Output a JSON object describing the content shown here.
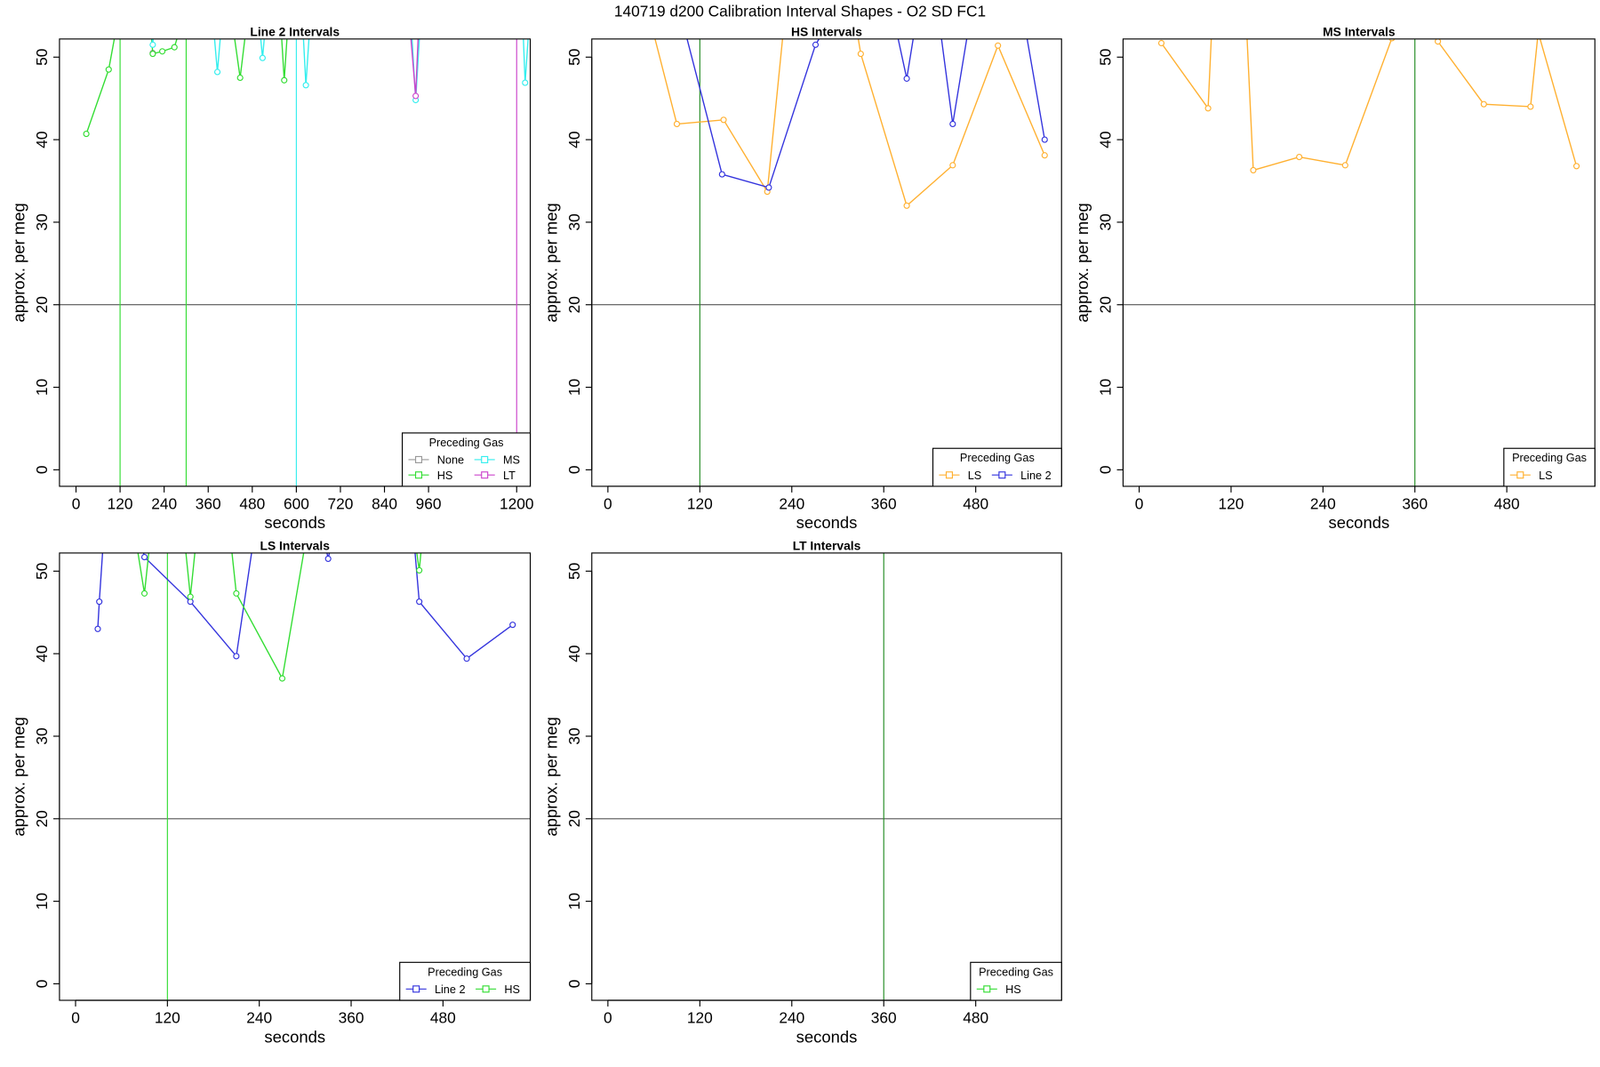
{
  "title": "140719   d200   Calibration Interval Shapes - O2 SD FC1",
  "chart_data": [
    {
      "type": "line",
      "title": "Line 2 Intervals",
      "xlabel": "seconds",
      "ylabel": "approx. per meg",
      "xlim": [
        -45,
        1237
      ],
      "ylim": [
        -2,
        52.2
      ],
      "xticks": [
        0,
        120,
        240,
        360,
        480,
        600,
        720,
        840,
        960,
        1200
      ],
      "yticks": [
        0,
        10,
        20,
        30,
        40,
        50
      ],
      "hline": 20,
      "hline_color": "#555555",
      "vlines": [
        120,
        300,
        600,
        1200
      ],
      "vline_colors": [
        "#33dd33",
        "#33dd33",
        "#33eeee",
        "#cc44cc"
      ],
      "legend_title": "Preceding Gas",
      "legend": "bottomright",
      "legend_ncol": 2,
      "series": [
        {
          "name": "None",
          "color": "#999999",
          "x": [
            209
          ],
          "values": [
            50.5
          ]
        },
        {
          "name": "HS",
          "color": "#33dd33",
          "x": [
            28,
            89,
            120,
            200,
            209,
            235,
            268,
            300,
            420,
            447,
            470,
            555,
            567,
            580
          ],
          "values": [
            40.7,
            48.5,
            56,
            56,
            50.4,
            50.7,
            51.2,
            56,
            56,
            47.5,
            56,
            56,
            47.2,
            56
          ]
        },
        {
          "name": "MS",
          "color": "#33eeee",
          "x": [
            200,
            209,
            215,
            370,
            385,
            400,
            495,
            508,
            520,
            615,
            626,
            640,
            910,
            925,
            940,
            1215,
            1223,
            1237
          ],
          "values": [
            56,
            51.5,
            56,
            56,
            48.2,
            56,
            56,
            49.9,
            56,
            56,
            46.6,
            56,
            56,
            44.8,
            56,
            56,
            46.9,
            56
          ]
        },
        {
          "name": "LT",
          "color": "#cc44cc",
          "x": [
            905,
            925,
            935
          ],
          "values": [
            56,
            45.3,
            56
          ]
        }
      ]
    },
    {
      "type": "line",
      "title": "HS Intervals",
      "xlabel": "seconds",
      "ylabel": "approx. per meg",
      "xlim": [
        -21,
        592
      ],
      "ylim": [
        -2,
        52.2
      ],
      "xticks": [
        0,
        120,
        240,
        360,
        480
      ],
      "yticks": [
        0,
        10,
        20,
        30,
        40,
        50
      ],
      "hline": 20,
      "hline_color": "#555555",
      "vlines": [
        120
      ],
      "vline_colors": [
        "#228b22"
      ],
      "legend_title": "Preceding Gas",
      "legend": "bottomright",
      "legend_ncol": 2,
      "series": [
        {
          "name": "LS",
          "color": "#ffb030",
          "x": [
            40,
            90,
            151,
            208,
            232,
            320,
            330,
            390,
            450,
            509,
            570
          ],
          "values": [
            60,
            41.9,
            42.4,
            33.7,
            56,
            56,
            50.4,
            32,
            36.9,
            51.4,
            38.1
          ]
        },
        {
          "name": "Line 2",
          "color": "#3333dd",
          "x": [
            90,
            149,
            210,
            271,
            300,
            370,
            390,
            405,
            430,
            450,
            475,
            540,
            570
          ],
          "values": [
            57,
            35.8,
            34.2,
            51.5,
            56,
            56,
            47.4,
            56,
            56,
            41.9,
            56,
            56,
            40
          ]
        }
      ]
    },
    {
      "type": "line",
      "title": "MS Intervals",
      "xlabel": "seconds",
      "ylabel": "approx. per meg",
      "xlim": [
        -21,
        595
      ],
      "ylim": [
        -2,
        52.2
      ],
      "xticks": [
        0,
        120,
        240,
        360,
        480
      ],
      "yticks": [
        0,
        10,
        20,
        30,
        40,
        50
      ],
      "hline": 20,
      "hline_color": "#555555",
      "vlines": [
        360
      ],
      "vline_colors": [
        "#228b22"
      ],
      "legend_title": "Preceding Gas",
      "legend": "bottomright",
      "legend_ncol": 1,
      "series": [
        {
          "name": "LS",
          "color": "#ffb030",
          "x": [
            29,
            90,
            96,
            139,
            149,
            209,
            269,
            330,
            340,
            380,
            390,
            450,
            511,
            521,
            571
          ],
          "values": [
            51.7,
            43.8,
            56,
            56,
            36.3,
            37.9,
            36.9,
            52.3,
            56,
            56,
            51.9,
            44.3,
            44.0,
            53,
            36.8
          ]
        }
      ]
    },
    {
      "type": "line",
      "title": "LS Intervals",
      "xlabel": "seconds",
      "ylabel": "approx. per meg",
      "xlim": [
        -21,
        594
      ],
      "ylim": [
        -2,
        52.2
      ],
      "xticks": [
        0,
        120,
        240,
        360,
        480
      ],
      "yticks": [
        0,
        10,
        20,
        30,
        40,
        50
      ],
      "hline": 20,
      "hline_color": "#555555",
      "vlines": [
        120
      ],
      "vline_colors": [
        "#33dd33"
      ],
      "legend_title": "Preceding Gas",
      "legend": "bottomright",
      "legend_ncol": 2,
      "series": [
        {
          "name": "Line 2",
          "color": "#3333dd",
          "x": [
            29,
            31,
            38,
            80,
            90,
            150,
            210,
            236,
            320,
            330,
            340,
            440,
            449,
            511,
            571
          ],
          "values": [
            43.0,
            46.3,
            56,
            56,
            51.7,
            46.3,
            39.7,
            56,
            56,
            51.5,
            56,
            56,
            46.3,
            39.4,
            43.5
          ]
        },
        {
          "name": "HS",
          "color": "#33dd33",
          "x": [
            75,
            90,
            100,
            140,
            150,
            160,
            200,
            210,
            270,
            305,
            440,
            449,
            455
          ],
          "values": [
            56,
            47.3,
            56,
            56,
            46.9,
            56,
            56,
            47.3,
            37,
            56,
            56,
            50.1,
            56
          ]
        }
      ]
    },
    {
      "type": "line",
      "title": "LT Intervals",
      "xlabel": "seconds",
      "ylabel": "approx. per meg",
      "xlim": [
        -21,
        592
      ],
      "ylim": [
        -2,
        52.2
      ],
      "xticks": [
        0,
        120,
        240,
        360,
        480
      ],
      "yticks": [
        0,
        10,
        20,
        30,
        40,
        50
      ],
      "hline": 20,
      "hline_color": "#555555",
      "vlines": [
        360
      ],
      "vline_colors": [
        "#228b22"
      ],
      "legend_title": "Preceding Gas",
      "legend": "bottomright",
      "legend_ncol": 1,
      "series": [
        {
          "name": "HS",
          "color": "#33dd33",
          "x": [],
          "values": []
        }
      ]
    }
  ]
}
